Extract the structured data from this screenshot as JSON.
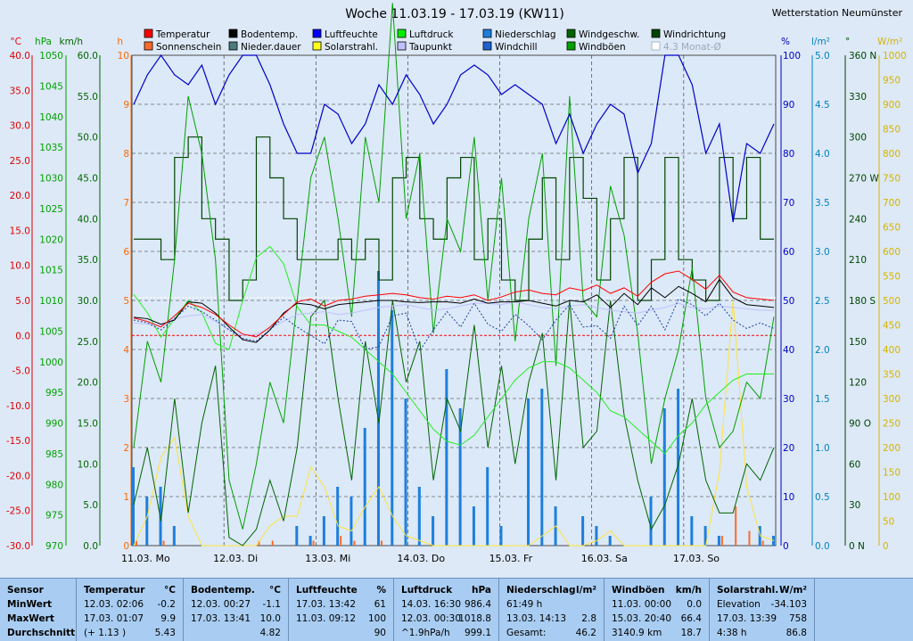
{
  "chart_data": {
    "type": "line",
    "title": "Woche 11.03.19 - 17.03.19 (KW11)",
    "station": "Wetterstation Neumünster",
    "x_labels": [
      "11.03.  Mo",
      "12.03.  Di",
      "13.03.  Mi",
      "14.03.  Do",
      "15.03.  Fr",
      "16.03.  Sa",
      "17.03.  So"
    ],
    "axes": {
      "temp": {
        "unit": "°C",
        "ticks": [
          "40.0",
          "35.0",
          "30.0",
          "25.0",
          "20.0",
          "15.0",
          "10.0",
          "5.0",
          "0.0",
          "-5.0",
          "-10.0",
          "-15.0",
          "-20.0",
          "-25.0",
          "-30.0"
        ],
        "color": "#e00000",
        "range": [
          -30,
          40
        ]
      },
      "pressure": {
        "unit": "hPa",
        "ticks": [
          "1050",
          "1045",
          "1040",
          "1035",
          "1030",
          "1025",
          "1020",
          "1015",
          "1010",
          "1005",
          "1000",
          "995",
          "990",
          "985",
          "980",
          "975",
          "970"
        ],
        "color": "#00a000",
        "range": [
          970,
          1050
        ]
      },
      "wind": {
        "unit": "km/h",
        "ticks": [
          "60.0",
          "55.0",
          "50.0",
          "45.0",
          "40.0",
          "35.0",
          "30.0",
          "25.0",
          "20.0",
          "15.0",
          "10.0",
          "5.0",
          "0.0"
        ],
        "color": "#006400",
        "range": [
          0,
          60
        ]
      },
      "hours": {
        "unit": "h",
        "ticks": [
          "10",
          "9",
          "8",
          "7",
          "6",
          "5",
          "4",
          "3",
          "2",
          "1",
          "0"
        ],
        "color": "#ff6600",
        "range": [
          0,
          10
        ]
      },
      "humidity": {
        "unit": "%",
        "ticks": [
          "100",
          "90",
          "80",
          "70",
          "60",
          "50",
          "40",
          "30",
          "20",
          "10",
          "0"
        ],
        "color": "#0000c0",
        "range": [
          0,
          100
        ]
      },
      "precip": {
        "unit": "l/m²",
        "ticks": [
          "5.0",
          "4.5",
          "4.0",
          "3.5",
          "3.0",
          "2.5",
          "2.0",
          "1.5",
          "1.0",
          "0.5",
          "0.0"
        ],
        "color": "#0080c0",
        "range": [
          0,
          5
        ]
      },
      "direction": {
        "unit": "°",
        "ticks": [
          "360 N",
          "330",
          "300",
          "270 W",
          "240",
          "210",
          "180 S",
          "150",
          "120",
          "90 O",
          "60",
          "30",
          "0  N"
        ],
        "color": "#004400",
        "range": [
          0,
          360
        ]
      },
      "solar": {
        "unit": "W/m²",
        "ticks": [
          "1000",
          "950",
          "900",
          "850",
          "800",
          "750",
          "700",
          "650",
          "600",
          "550",
          "500",
          "450",
          "400",
          "350",
          "300",
          "250",
          "200",
          "150",
          "100",
          "50",
          "0"
        ],
        "color": "#d4b400",
        "range": [
          0,
          1000
        ]
      }
    },
    "legend": [
      {
        "label": "Temperatur",
        "color": "#ff0000"
      },
      {
        "label": "Bodentemp.",
        "color": "#000000"
      },
      {
        "label": "Luftfeuchte",
        "color": "#0000ff"
      },
      {
        "label": "Luftdruck",
        "color": "#00ee00"
      },
      {
        "label": "Niederschlag",
        "color": "#1e7fdc"
      },
      {
        "label": "Windgeschw.",
        "color": "#006400"
      },
      {
        "label": "Windrichtung",
        "color": "#004400"
      },
      {
        "label": "Sonnenschein",
        "color": "#ff6a2a"
      },
      {
        "label": "Nieder.dauer",
        "color": "#4a7a7a"
      },
      {
        "label": "Solarstrahl.",
        "color": "#ffff20"
      },
      {
        "label": "Taupunkt",
        "color": "#c0c0ff"
      },
      {
        "label": "Windchill",
        "color": "#2060d0"
      },
      {
        "label": "Windböen",
        "color": "#00a000"
      },
      {
        "label": "4.3 Monat-Ø",
        "color": "#ffffff",
        "muted": true
      }
    ],
    "series": {
      "temperature_c": [
        2.5,
        2.0,
        1.2,
        2.8,
        4.6,
        4.0,
        3.0,
        1.5,
        0.2,
        -0.2,
        1.2,
        3.0,
        4.8,
        5.2,
        4.2,
        5.0,
        5.2,
        5.6,
        5.8,
        6.0,
        5.8,
        5.4,
        5.2,
        5.6,
        5.4,
        5.8,
        5.0,
        5.5,
        6.2,
        6.5,
        6.0,
        5.8,
        6.8,
        6.4,
        7.2,
        6.0,
        6.8,
        5.6,
        7.6,
        8.8,
        9.2,
        8.0,
        6.6,
        8.6,
        6.2,
        5.4,
        5.2,
        5.0
      ],
      "soil_temp_c": [
        2.6,
        2.4,
        1.6,
        2.2,
        4.8,
        4.6,
        3.2,
        1.2,
        -0.6,
        -1.0,
        0.8,
        3.2,
        4.6,
        4.4,
        3.8,
        4.4,
        4.6,
        4.8,
        5.0,
        5.0,
        4.8,
        4.7,
        4.8,
        4.8,
        4.6,
        5.2,
        4.6,
        4.8,
        4.8,
        5.0,
        4.6,
        4.2,
        5.0,
        4.8,
        5.8,
        4.0,
        6.0,
        4.4,
        6.8,
        5.4,
        7.0,
        6.0,
        4.8,
        8.0,
        5.4,
        4.4,
        4.2,
        4.0
      ],
      "dewpoint_c": [
        1.8,
        1.6,
        1.4,
        2.4,
        2.8,
        3.0,
        2.0,
        0.8,
        0.0,
        0.2,
        1.0,
        2.0,
        3.0,
        3.2,
        3.4,
        3.0,
        3.2,
        3.6,
        4.0,
        4.2,
        4.4,
        4.0,
        3.6,
        3.8,
        4.2,
        4.6,
        4.6,
        4.4,
        4.8,
        4.4,
        4.0,
        3.8,
        4.2,
        4.4,
        4.0,
        3.6,
        3.4,
        3.2,
        3.6,
        4.0,
        4.6,
        4.0,
        3.8,
        4.2,
        4.0,
        3.8,
        3.6,
        3.6
      ],
      "windchill_c": [
        2.2,
        1.8,
        0.8,
        2.4,
        4.2,
        3.4,
        2.2,
        0.8,
        -0.4,
        -0.8,
        0.8,
        2.6,
        1.2,
        0.0,
        -1.2,
        2.2,
        2.0,
        -2.0,
        -1.6,
        2.8,
        3.2,
        -2.2,
        0.8,
        3.4,
        1.2,
        4.6,
        1.6,
        0.6,
        3.0,
        1.4,
        -0.6,
        2.2,
        4.4,
        1.2,
        1.4,
        -0.4,
        4.2,
        1.4,
        4.2,
        0.8,
        5.2,
        4.4,
        2.8,
        4.6,
        2.2,
        1.0,
        1.8,
        1.0
      ],
      "humidity_pct": [
        90,
        96,
        100,
        96,
        94,
        98,
        90,
        96,
        100,
        100,
        94,
        86,
        80,
        80,
        90,
        88,
        82,
        86,
        94,
        90,
        96,
        92,
        86,
        90,
        96,
        98,
        96,
        92,
        94,
        92,
        90,
        82,
        88,
        80,
        86,
        90,
        88,
        76,
        82,
        100,
        100,
        94,
        80,
        86,
        66,
        82,
        80,
        86
      ],
      "pressure_hpa": [
        1011,
        1008,
        1004,
        1007,
        1010,
        1008,
        1003,
        1002,
        1010,
        1017,
        1018.8,
        1016,
        1009,
        1006,
        1006,
        1005,
        1004,
        1002,
        1000,
        998,
        995,
        992,
        989,
        987,
        986.4,
        988,
        991,
        994,
        997,
        999,
        1000,
        1000,
        999,
        997,
        995,
        992,
        991,
        989,
        987,
        985,
        988,
        990,
        993,
        995,
        997,
        998,
        998,
        998
      ],
      "wind_kmh": [
        5,
        12,
        3,
        18,
        4,
        15,
        22,
        1,
        0,
        2,
        8,
        3,
        12,
        28,
        30,
        18,
        8,
        25,
        15,
        30,
        20,
        25,
        8,
        18,
        14,
        27,
        12,
        22,
        10,
        20,
        26,
        8,
        30,
        12,
        14,
        30,
        16,
        8,
        2,
        5,
        10,
        18,
        8,
        4,
        4,
        10,
        8,
        12
      ],
      "gust_kmh": [
        12,
        25,
        20,
        35,
        55,
        48,
        35,
        8,
        2,
        10,
        20,
        15,
        30,
        45,
        50,
        40,
        28,
        50,
        42,
        66.4,
        40,
        48,
        26,
        40,
        36,
        50,
        30,
        45,
        25,
        40,
        48,
        22,
        55,
        30,
        28,
        44,
        38,
        26,
        10,
        18,
        24,
        34,
        18,
        12,
        14,
        20,
        18,
        28
      ],
      "direction_deg": [
        225,
        225,
        210,
        285,
        300,
        240,
        225,
        180,
        195,
        300,
        270,
        240,
        210,
        210,
        210,
        225,
        210,
        225,
        195,
        270,
        285,
        240,
        225,
        270,
        285,
        210,
        240,
        195,
        180,
        225,
        270,
        210,
        285,
        255,
        195,
        240,
        285,
        180,
        210,
        285,
        210,
        195,
        180,
        285,
        240,
        285,
        225,
        225
      ],
      "precip_l": [
        0.8,
        0.5,
        0.6,
        0.2,
        0.0,
        0.0,
        0.0,
        0.0,
        0.0,
        0.0,
        0.0,
        0.0,
        0.2,
        0.1,
        0.3,
        0.6,
        0.5,
        1.2,
        2.8,
        2.4,
        1.5,
        0.6,
        0.3,
        1.8,
        1.4,
        0.4,
        0.8,
        0.2,
        0.0,
        1.5,
        1.6,
        0.4,
        0.0,
        0.3,
        0.2,
        0.1,
        0.0,
        0.0,
        0.5,
        1.4,
        1.6,
        0.3,
        0.2,
        0.1,
        0.0,
        0.0,
        0.2,
        0.1
      ],
      "solar_wm2": [
        0,
        60,
        180,
        220,
        60,
        0,
        0,
        0,
        0,
        0,
        40,
        60,
        60,
        160,
        120,
        40,
        30,
        80,
        120,
        60,
        20,
        10,
        0,
        0,
        0,
        0,
        0,
        0,
        0,
        0,
        20,
        40,
        0,
        0,
        10,
        30,
        0,
        0,
        0,
        0,
        0,
        0,
        0,
        150,
        500,
        120,
        20,
        10
      ],
      "sunshine_h": [
        0.1,
        0.0,
        0.1,
        0.0,
        0.0,
        0.0,
        0.0,
        0.0,
        0.0,
        0.1,
        0.1,
        0.0,
        0.0,
        0.1,
        0.0,
        0.2,
        0.1,
        0.0,
        0.1,
        0.0,
        0.0,
        0.0,
        0.0,
        0.0,
        0.0,
        0.0,
        0.0,
        0.0,
        0.0,
        0.0,
        0.0,
        0.0,
        0.0,
        0.0,
        0.0,
        0.0,
        0.0,
        0.0,
        0.0,
        0.0,
        0.0,
        0.0,
        0.0,
        0.2,
        0.8,
        0.3,
        0.1,
        0.0
      ]
    },
    "grid": true
  },
  "stats": [
    {
      "title": "Sensor",
      "unit": "",
      "rows": [
        [
          "MinWert",
          ""
        ],
        [
          "MaxWert",
          ""
        ],
        [
          "Durchschnitt",
          ""
        ]
      ]
    },
    {
      "title": "Temperatur",
      "unit": "°C",
      "rows": [
        [
          "12.03.  02:06",
          "-0.2"
        ],
        [
          "17.03.  01:07",
          "9.9"
        ],
        [
          "(+ 1.13 )",
          "5.43"
        ]
      ]
    },
    {
      "title": "Bodentemp.",
      "unit": "°C",
      "rows": [
        [
          "12.03.  00:27",
          "-1.1"
        ],
        [
          "17.03.  13:41",
          "10.0"
        ],
        [
          "",
          "4.82"
        ]
      ]
    },
    {
      "title": "Luftfeuchte",
      "unit": "%",
      "rows": [
        [
          "17.03.  13:42",
          "61"
        ],
        [
          "11.03.  09:12",
          "100"
        ],
        [
          "",
          "90"
        ]
      ]
    },
    {
      "title": "Luftdruck",
      "unit": "hPa",
      "rows": [
        [
          "14.03.  16:30",
          "986.4"
        ],
        [
          "12.03.  00:30",
          "1018.8"
        ],
        [
          "^1.9hPa/h",
          "999.1"
        ]
      ]
    },
    {
      "title": "Niederschlag",
      "unit": "l/m²",
      "rows": [
        [
          "61:49 h",
          ""
        ],
        [
          "13.03.  14:13",
          "2.8"
        ],
        [
          "Gesamt:",
          "46.2"
        ]
      ]
    },
    {
      "title": "Windböen",
      "unit": "km/h",
      "rows": [
        [
          "11.03.  00:00",
          "0.0"
        ],
        [
          "15.03.  20:40",
          "66.4"
        ],
        [
          "3140.9 km",
          "18.7"
        ]
      ]
    },
    {
      "title": "Solarstrahl.",
      "unit": "W/m²",
      "rows": [
        [
          "Elevation",
          "-34.103"
        ],
        [
          "17.03.  13:39",
          "758"
        ],
        [
          "4:38 h",
          "86.8"
        ]
      ]
    }
  ]
}
